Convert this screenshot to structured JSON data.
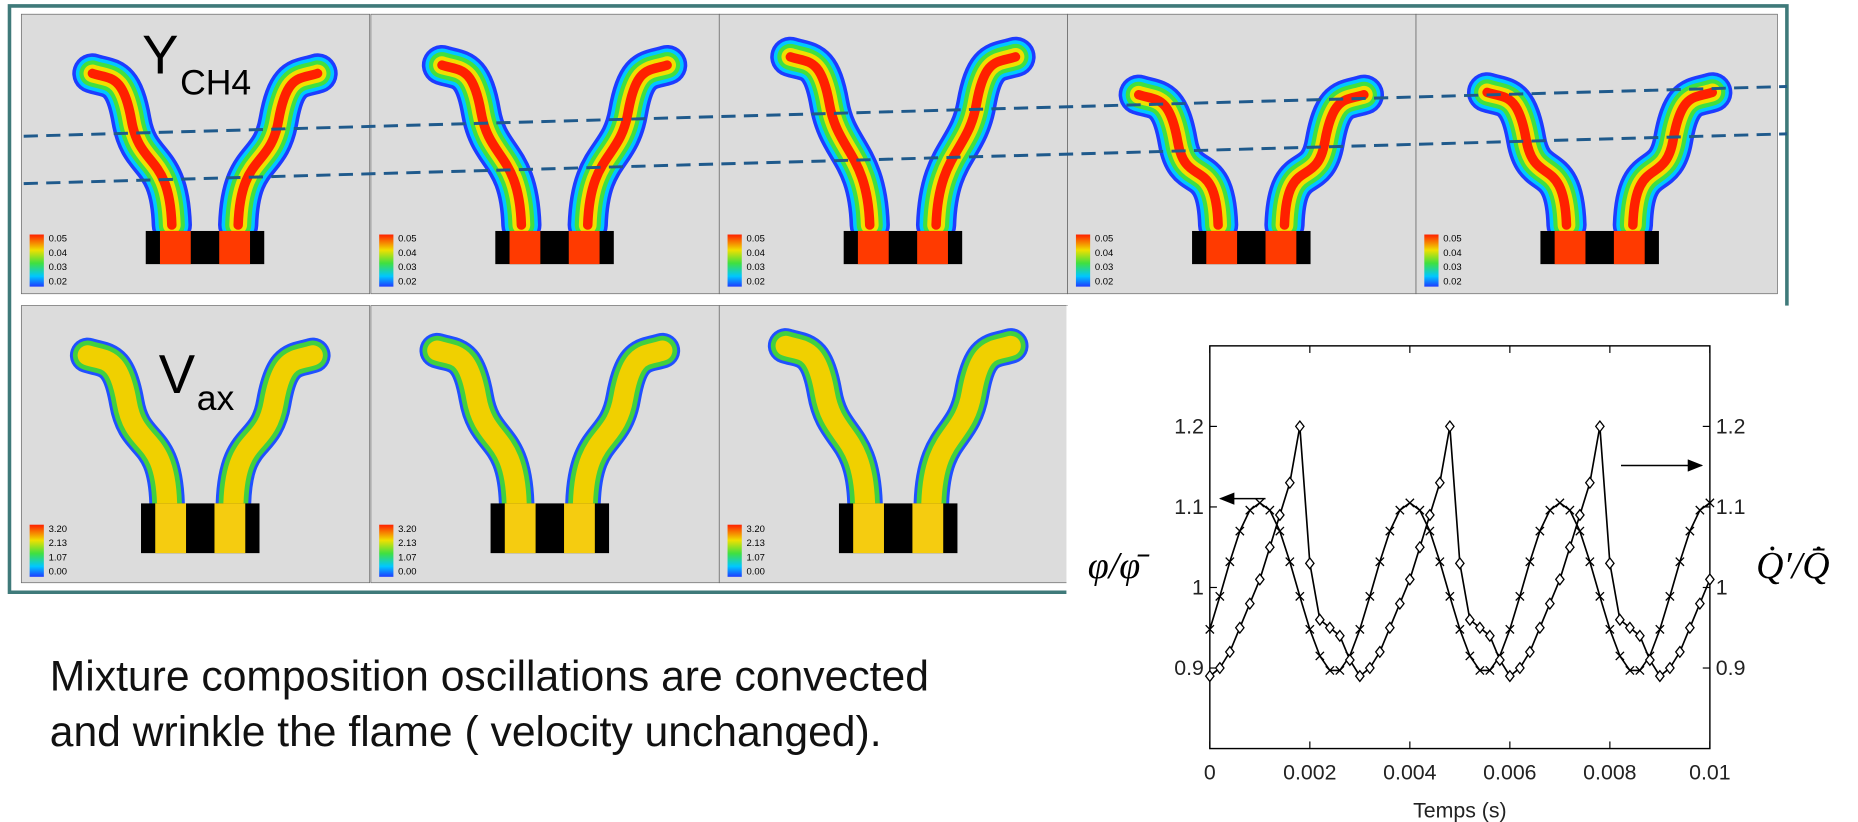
{
  "panels": {
    "top": {
      "symbol": "Y",
      "subscript": "CH4",
      "colorbar": [
        "0.05",
        "0.04",
        "0.03",
        "0.02"
      ]
    },
    "bottom": {
      "symbol": "V",
      "subscript": "ax",
      "colorbar": [
        "3.20",
        "2.13",
        "1.07",
        "0.00"
      ]
    }
  },
  "caption": [
    "Mixture composition oscillations are convected",
    "and wrinkle the flame ( velocity unchanged)."
  ],
  "chart_data": {
    "type": "line",
    "xlabel": "Temps (s)",
    "ylabel": "φ/φ̄",
    "y2label": "Q̇′/Q̇̄",
    "x": [
      0,
      0.0002,
      0.0004,
      0.0006,
      0.0008,
      0.001,
      0.0012,
      0.0014,
      0.0016,
      0.0018,
      0.002,
      0.0022,
      0.0024,
      0.0026,
      0.0028,
      0.003,
      0.0032,
      0.0034,
      0.0036,
      0.0038,
      0.004,
      0.0042,
      0.0044,
      0.0046,
      0.0048,
      0.005,
      0.0052,
      0.0054,
      0.0056,
      0.0058,
      0.006,
      0.0062,
      0.0064,
      0.0066,
      0.0068,
      0.007,
      0.0072,
      0.0074,
      0.0076,
      0.0078,
      0.008,
      0.0082,
      0.0084,
      0.0086,
      0.0088,
      0.009,
      0.0092,
      0.0094,
      0.0096,
      0.0098,
      0.01
    ],
    "series": [
      {
        "color": "#000000",
        "marker": "x",
        "values": [
          0.948,
          0.989,
          1.032,
          1.07,
          1.096,
          1.105,
          1.096,
          1.07,
          1.032,
          0.989,
          0.948,
          0.915,
          0.897,
          0.897,
          0.915,
          0.948,
          0.989,
          1.032,
          1.07,
          1.096,
          1.105,
          1.096,
          1.07,
          1.032,
          0.989,
          0.948,
          0.915,
          0.897,
          0.897,
          0.915,
          0.948,
          0.989,
          1.032,
          1.07,
          1.096,
          1.105,
          1.096,
          1.07,
          1.032,
          0.989,
          0.948,
          0.915,
          0.897,
          0.897,
          0.915,
          0.948,
          0.989,
          1.032,
          1.07,
          1.096,
          1.105
        ]
      },
      {
        "color": "#000000",
        "marker": "diamond",
        "axis": "y2",
        "values": [
          0.89,
          0.9,
          0.92,
          0.95,
          0.98,
          1.01,
          1.05,
          1.09,
          1.13,
          1.2,
          1.03,
          0.96,
          0.95,
          0.94,
          0.91,
          0.89,
          0.9,
          0.92,
          0.95,
          0.98,
          1.01,
          1.05,
          1.09,
          1.13,
          1.2,
          1.03,
          0.96,
          0.95,
          0.94,
          0.91,
          0.89,
          0.9,
          0.92,
          0.95,
          0.98,
          1.01,
          1.05,
          1.09,
          1.13,
          1.2,
          1.03,
          0.96,
          0.95,
          0.94,
          0.91,
          0.89,
          0.9,
          0.92,
          0.95,
          0.98,
          1.01
        ]
      }
    ],
    "xlim": [
      0,
      0.01
    ],
    "xticks": [
      0,
      0.002,
      0.004,
      0.006,
      0.008,
      0.01
    ],
    "ylim": [
      0.8,
      1.3
    ],
    "yticks": [
      0.9,
      1,
      1.1,
      1.2
    ],
    "y2lim": [
      0.8,
      1.3
    ],
    "y2ticks": [
      0.9,
      1,
      1.1,
      1.2
    ]
  }
}
